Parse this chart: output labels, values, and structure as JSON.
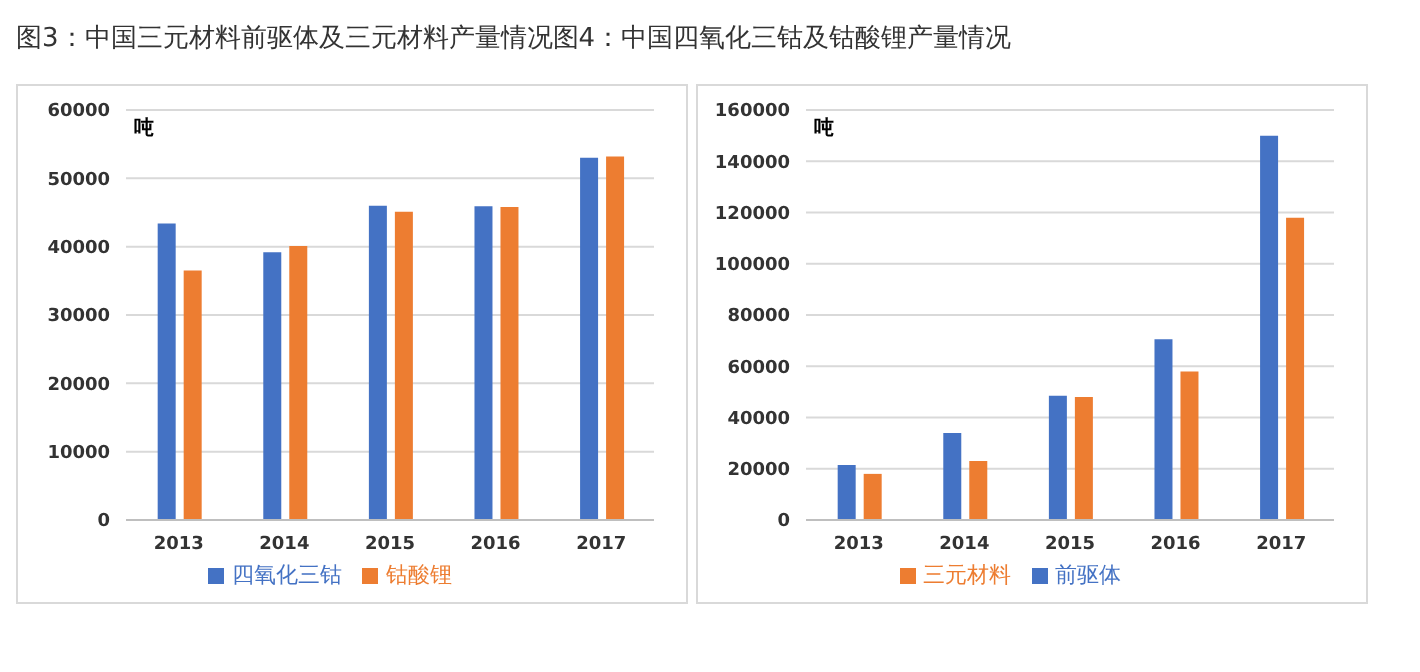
{
  "chart_data": [
    {
      "type": "bar",
      "title": "图3：中国三元材料前驱体及三元材料产量情况图4：中国四氧化三钴及钴酸锂产量情况",
      "ylabel": "吨",
      "categories": [
        "2013",
        "2014",
        "2015",
        "2016",
        "2017"
      ],
      "series": [
        {
          "name": "四氧化三钴",
          "color": "#4472c4",
          "values": [
            43400,
            39200,
            46000,
            45900,
            53000
          ]
        },
        {
          "name": "钴酸锂",
          "color": "#ed7d31",
          "values": [
            36500,
            40100,
            45100,
            45800,
            53200
          ]
        }
      ],
      "ylim": [
        0,
        60000
      ],
      "yticks": [
        0,
        10000,
        20000,
        30000,
        40000,
        50000,
        60000
      ],
      "grid": "y",
      "legend": "bottom"
    },
    {
      "type": "bar",
      "ylabel": "吨",
      "categories": [
        "2013",
        "2014",
        "2015",
        "2016",
        "2017"
      ],
      "series": [
        {
          "name": "前驱体",
          "color": "#4472c4",
          "values": [
            21500,
            34000,
            48500,
            70500,
            150000
          ]
        },
        {
          "name": "三元材料",
          "color": "#ed7d31",
          "values": [
            18000,
            23000,
            48000,
            58000,
            118000
          ]
        }
      ],
      "ylim": [
        0,
        160000
      ],
      "yticks": [
        0,
        20000,
        40000,
        60000,
        80000,
        100000,
        120000,
        140000,
        160000
      ],
      "grid": "y",
      "legend": "bottom"
    }
  ]
}
